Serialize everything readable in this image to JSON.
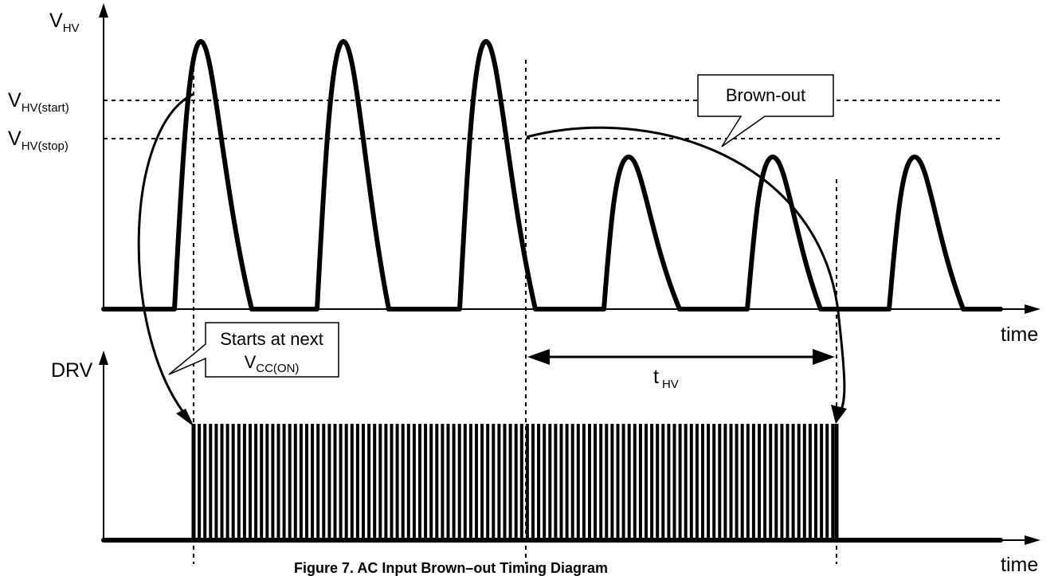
{
  "top_axis": {
    "y_label_main": "V",
    "y_label_sub": "HV",
    "x_label": "time"
  },
  "bottom_axis": {
    "y_label": "DRV",
    "x_label": "time"
  },
  "thresholds": {
    "start_main": "V",
    "start_sub": "HV(start)",
    "stop_main": "V",
    "stop_sub": "HV(stop)"
  },
  "callouts": {
    "brown_out": "Brown-out",
    "starts_line1": "Starts at next",
    "starts_line2_main": "V",
    "starts_line2_sub": "CC(ON)"
  },
  "interval": {
    "label_main": "t",
    "label_sub": "HV"
  },
  "caption": "Figure 7. AC Input Brown–out Timing Diagram"
}
